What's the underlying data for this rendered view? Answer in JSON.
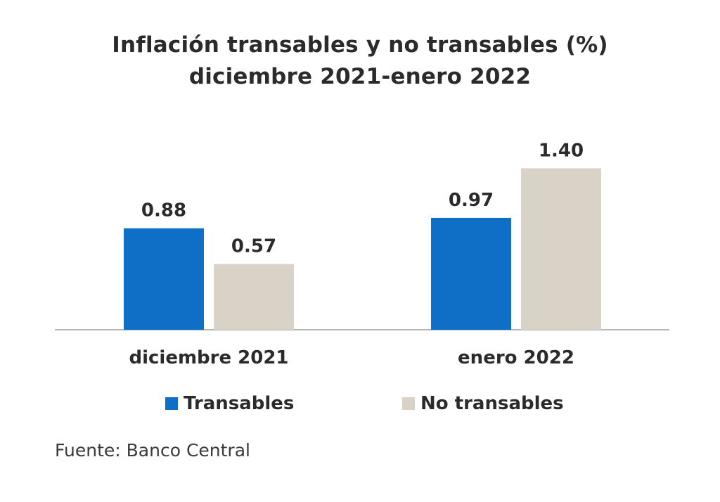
{
  "chart_data": {
    "type": "bar",
    "title": "Inflación transables y no transables (%)",
    "subtitle": "diciembre 2021-enero 2022",
    "categories": [
      "diciembre 2021",
      "enero 2022"
    ],
    "series": [
      {
        "name": "Transables",
        "color": "#0f6fc6",
        "values": [
          0.88,
          0.97
        ],
        "labels": [
          "0.88",
          "0.97"
        ]
      },
      {
        "name": "No transables",
        "color": "#d9d3c7",
        "values": [
          0.57,
          1.4
        ],
        "labels": [
          "0.57",
          "1.40"
        ]
      }
    ],
    "ylim": [
      0,
      1.6
    ],
    "grid": false,
    "legend_position": "bottom",
    "source": "Fuente: Banco Central"
  }
}
